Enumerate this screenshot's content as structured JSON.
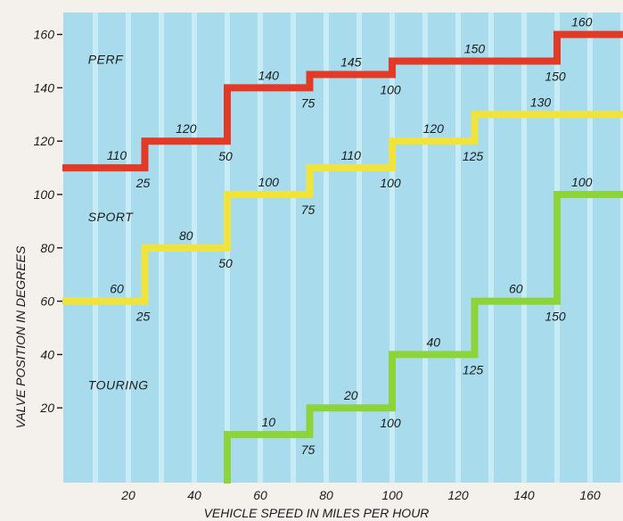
{
  "colors": {
    "background": "#a8dcec",
    "stripe": "#cdeef7",
    "frame": "#f4f1ec",
    "perf": "#e23a26",
    "sport": "#f0e33c",
    "touring": "#8cd43a",
    "text": "#1b1b1b"
  },
  "chart_data": {
    "type": "line",
    "step": true,
    "xlabel": "VEHICLE SPEED IN MILES PER HOUR",
    "ylabel": "VALVE POSITION IN DEGREES",
    "xlim": [
      0,
      170
    ],
    "ylim": [
      -5,
      175
    ],
    "xticks": [
      20,
      40,
      60,
      80,
      100,
      120,
      140,
      160
    ],
    "yticks": [
      20,
      40,
      60,
      80,
      100,
      120,
      140,
      160
    ],
    "x_tick_labels": [
      "20",
      "40",
      "60",
      "80",
      "100",
      "120",
      "140",
      "160"
    ],
    "y_tick_labels": [
      "20",
      "40",
      "60",
      "80",
      "100",
      "120",
      "140",
      "160"
    ],
    "grid": true,
    "series": [
      {
        "name": "PERF",
        "color_key": "perf",
        "points": [
          {
            "x": 0,
            "y": 110
          },
          {
            "x": 25,
            "y": 120
          },
          {
            "x": 50,
            "y": 140
          },
          {
            "x": 75,
            "y": 145
          },
          {
            "x": 100,
            "y": 150
          },
          {
            "x": 150,
            "y": 160
          }
        ],
        "x_end": 170,
        "value_labels": [
          "110",
          "120",
          "140",
          "145",
          "150",
          "160"
        ],
        "speed_labels": [
          "25",
          "50",
          "75",
          "100",
          "150"
        ]
      },
      {
        "name": "SPORT",
        "color_key": "sport",
        "points": [
          {
            "x": 0,
            "y": 60
          },
          {
            "x": 25,
            "y": 80
          },
          {
            "x": 50,
            "y": 100
          },
          {
            "x": 75,
            "y": 110
          },
          {
            "x": 100,
            "y": 120
          },
          {
            "x": 125,
            "y": 130
          }
        ],
        "x_end": 170,
        "value_labels": [
          "60",
          "80",
          "100",
          "110",
          "120",
          "130"
        ],
        "speed_labels": [
          "25",
          "50",
          "75",
          "100",
          "125"
        ]
      },
      {
        "name": "TOURING",
        "color_key": "touring",
        "points": [
          {
            "x": 50,
            "y": 10
          },
          {
            "x": 75,
            "y": 20
          },
          {
            "x": 100,
            "y": 40
          },
          {
            "x": 125,
            "y": 60
          },
          {
            "x": 150,
            "y": 100
          }
        ],
        "x_end": 170,
        "start_from_bottom": true,
        "value_labels": [
          "10",
          "20",
          "40",
          "60",
          "100"
        ],
        "speed_labels": [
          "75",
          "100",
          "125",
          "150"
        ]
      }
    ]
  }
}
